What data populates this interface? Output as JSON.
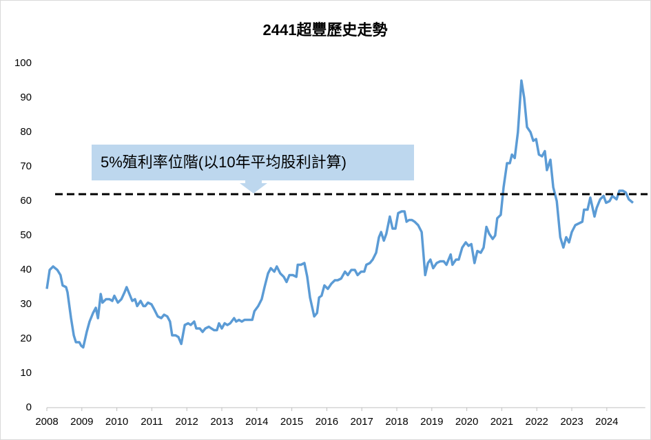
{
  "chart_data": {
    "type": "line",
    "title": "2441超豐歷史走勢",
    "x": [
      2008.0,
      2008.08,
      2008.18,
      2008.3,
      2008.39,
      2008.45,
      2008.55,
      2008.59,
      2008.69,
      2008.77,
      2008.83,
      2008.93,
      2008.98,
      2009.04,
      2009.14,
      2009.22,
      2009.32,
      2009.4,
      2009.46,
      2009.54,
      2009.59,
      2009.69,
      2009.79,
      2009.87,
      2009.93,
      2010.03,
      2010.13,
      2010.22,
      2010.28,
      2010.36,
      2010.44,
      2010.52,
      2010.58,
      2010.68,
      2010.76,
      2010.81,
      2010.89,
      2010.99,
      2011.07,
      2011.17,
      2011.27,
      2011.35,
      2011.44,
      2011.52,
      2011.58,
      2011.68,
      2011.76,
      2011.84,
      2011.94,
      2012.04,
      2012.11,
      2012.21,
      2012.27,
      2012.37,
      2012.45,
      2012.53,
      2012.63,
      2012.7,
      2012.78,
      2012.86,
      2012.92,
      2013.0,
      2013.08,
      2013.16,
      2013.24,
      2013.35,
      2013.41,
      2013.49,
      2013.57,
      2013.65,
      2013.75,
      2013.87,
      2013.93,
      2014.04,
      2014.14,
      2014.22,
      2014.32,
      2014.4,
      2014.5,
      2014.57,
      2014.67,
      2014.77,
      2014.85,
      2014.93,
      2015.03,
      2015.13,
      2015.17,
      2015.26,
      2015.36,
      2015.44,
      2015.52,
      2015.64,
      2015.72,
      2015.78,
      2015.85,
      2015.93,
      2016.03,
      2016.13,
      2016.23,
      2016.31,
      2016.41,
      2016.52,
      2016.6,
      2016.7,
      2016.8,
      2016.88,
      2016.98,
      2017.07,
      2017.13,
      2017.23,
      2017.31,
      2017.41,
      2017.49,
      2017.55,
      2017.63,
      2017.7,
      2017.8,
      2017.88,
      2017.96,
      2018.04,
      2018.14,
      2018.22,
      2018.28,
      2018.35,
      2018.43,
      2018.51,
      2018.61,
      2018.71,
      2018.81,
      2018.89,
      2018.96,
      2019.04,
      2019.14,
      2019.24,
      2019.34,
      2019.42,
      2019.54,
      2019.59,
      2019.69,
      2019.77,
      2019.87,
      2019.97,
      2020.05,
      2020.13,
      2020.22,
      2020.3,
      2020.4,
      2020.48,
      2020.56,
      2020.64,
      2020.74,
      2020.81,
      2020.87,
      2020.97,
      2021.05,
      2021.15,
      2021.23,
      2021.29,
      2021.37,
      2021.46,
      2021.56,
      2021.64,
      2021.72,
      2021.82,
      2021.9,
      2021.98,
      2022.06,
      2022.15,
      2022.23,
      2022.29,
      2022.39,
      2022.47,
      2022.57,
      2022.67,
      2022.76,
      2022.84,
      2022.92,
      2023.0,
      2023.1,
      2023.2,
      2023.3,
      2023.35,
      2023.45,
      2023.53,
      2023.65,
      2023.71,
      2023.81,
      2023.91,
      2023.98,
      2024.08,
      2024.16,
      2024.28,
      2024.36,
      2024.46,
      2024.54,
      2024.63,
      2024.75
    ],
    "series": [
      {
        "color": "#5b9bd5",
        "values": [
          34.5,
          40,
          41,
          40,
          38.5,
          35.5,
          35,
          33.5,
          26,
          21,
          19,
          19,
          18,
          17.5,
          22,
          25,
          27.5,
          29,
          26,
          33,
          30.5,
          31.5,
          31.5,
          31,
          32.5,
          30.5,
          31.5,
          33.5,
          35,
          33,
          31,
          31.5,
          29.5,
          31,
          29.5,
          29.5,
          30.5,
          30,
          28.5,
          26.5,
          26,
          27,
          26.5,
          25,
          21,
          21,
          20.5,
          18.5,
          24,
          24.5,
          24,
          25,
          23,
          23,
          22,
          23,
          23.5,
          23,
          22.5,
          22.5,
          24.5,
          23,
          24.5,
          24,
          24.5,
          26,
          25,
          25.5,
          25,
          25.5,
          25.5,
          25.5,
          28,
          29.5,
          31.5,
          35,
          39,
          40.5,
          39.5,
          41,
          39,
          38,
          36.5,
          38.5,
          38.5,
          38,
          41.5,
          41.5,
          42,
          38,
          32,
          26.5,
          27.5,
          32,
          32.5,
          35.5,
          34.5,
          36,
          37,
          37,
          37.5,
          39.5,
          38.5,
          40,
          40,
          38.5,
          39.5,
          39.5,
          41.5,
          42,
          43,
          45,
          49.5,
          51,
          48.5,
          50.5,
          55.5,
          52,
          52,
          56.5,
          57,
          57,
          54,
          54.5,
          54.5,
          54,
          53,
          51,
          38.5,
          42,
          43,
          40.5,
          42,
          42.5,
          42.5,
          41.5,
          44.5,
          41.5,
          43,
          43,
          46.5,
          48,
          47,
          47.5,
          42,
          45.5,
          45,
          46.5,
          52.5,
          50.5,
          49,
          50,
          55,
          56,
          64,
          71,
          71,
          73.5,
          72.5,
          80,
          95,
          90,
          81.5,
          80,
          77.5,
          78,
          73.5,
          73,
          74.5,
          69,
          72,
          64,
          60,
          49.5,
          46.5,
          49.5,
          48,
          51,
          53,
          53.5,
          54,
          57.5,
          57.5,
          61,
          55.5,
          58,
          60.5,
          61.5,
          59.5,
          60,
          61.5,
          60.5,
          63,
          63,
          62.5,
          60.5,
          59.5
        ]
      }
    ],
    "reference_line": {
      "value": 62,
      "label": "5%殖利率位階(以10年平均股利計算)",
      "color": "#000000"
    },
    "xlim": [
      2008,
      2025.1
    ],
    "xticks": [
      2008,
      2009,
      2010,
      2011,
      2012,
      2013,
      2014,
      2015,
      2016,
      2017,
      2018,
      2019,
      2020,
      2021,
      2022,
      2023,
      2024
    ],
    "ylim": [
      0,
      100
    ],
    "yticks": [
      0,
      10,
      20,
      30,
      40,
      50,
      60,
      70,
      80,
      90,
      100
    ],
    "grid": false
  }
}
